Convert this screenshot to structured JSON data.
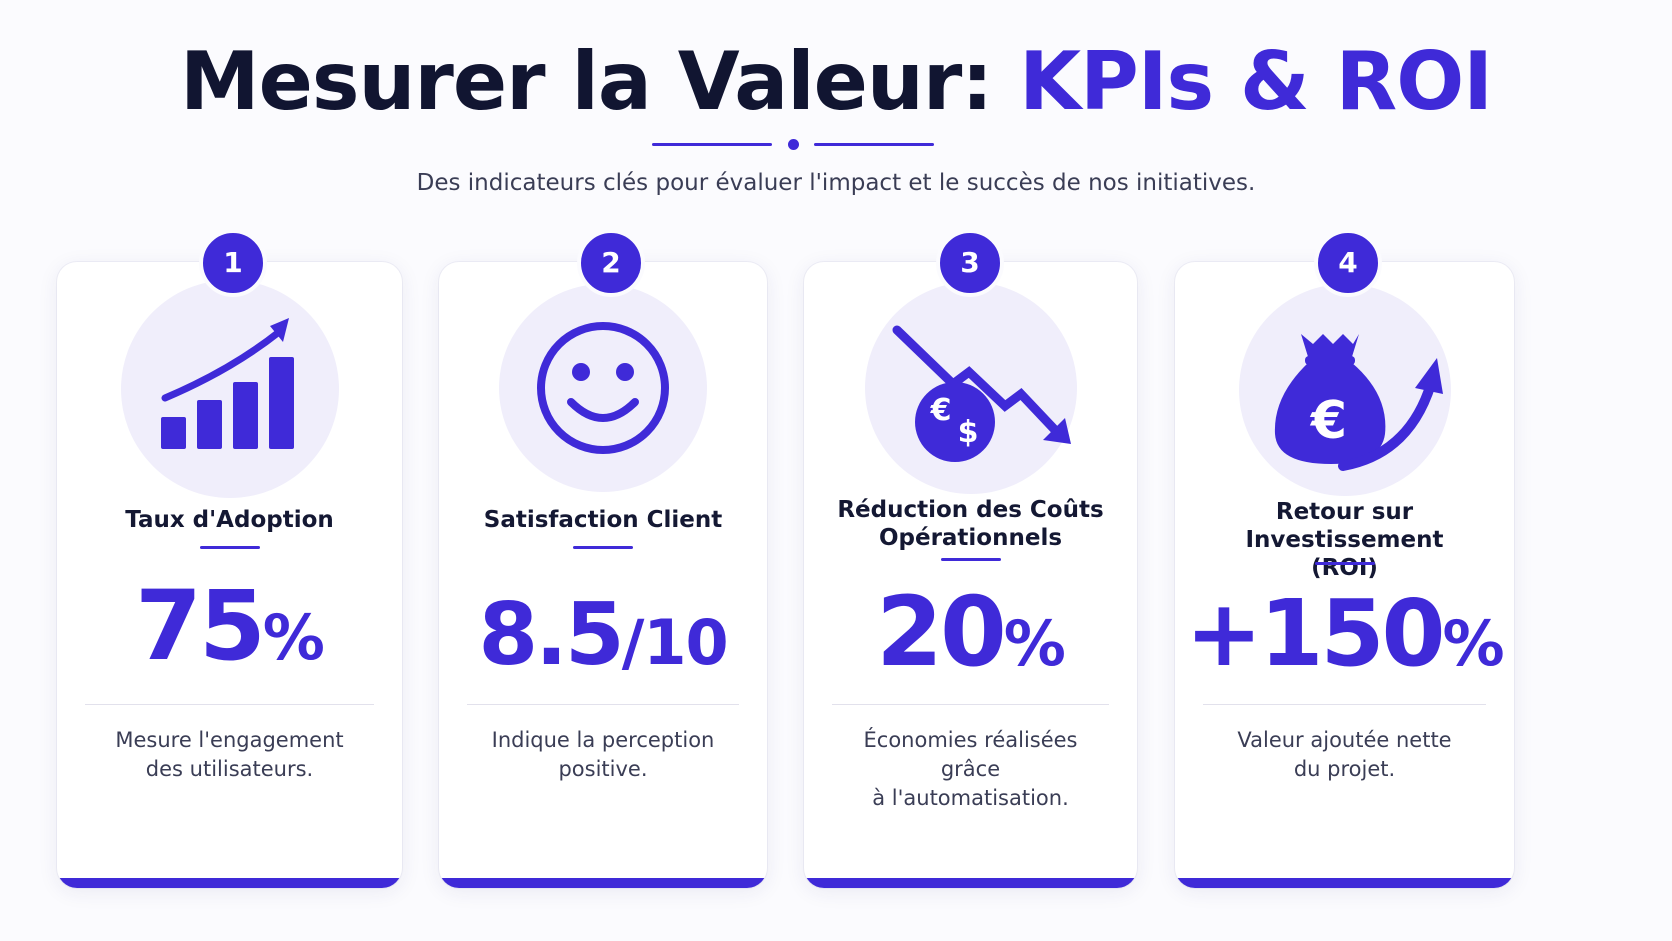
{
  "header": {
    "title_main": "Mesurer la Valeur: ",
    "title_accent": "KPIs & ROI",
    "subtitle": "Des indicateurs clés pour évaluer l'impact et le succès de nos initiatives."
  },
  "colors": {
    "accent": "#3f2ad8",
    "dark": "#111531",
    "icon_bg": "#f0eefb"
  },
  "cards": [
    {
      "number": "1",
      "icon": "growth-chart-icon",
      "title_line1": "Taux d'Adoption",
      "title_line2": "",
      "value": "75",
      "unit": "%",
      "desc_line1": "Mesure l'engagement",
      "desc_line2": "des utilisateurs."
    },
    {
      "number": "2",
      "icon": "smiley-icon",
      "title_line1": "Satisfaction Client",
      "title_line2": "",
      "value": "8.5",
      "unit": "/10",
      "desc_line1": "Indique la perception",
      "desc_line2": "positive."
    },
    {
      "number": "3",
      "icon": "cost-reduction-icon",
      "title_line1": "Réduction des Coûts",
      "title_line2": "Opérationnels",
      "value": "20",
      "unit": "%",
      "desc_line1": "Économies réalisées grâce",
      "desc_line2": "à l'automatisation."
    },
    {
      "number": "4",
      "icon": "money-bag-icon",
      "title_line1": "Retour sur Investissement",
      "title_line2": "(ROI)",
      "value": "+150",
      "unit": "%",
      "desc_line1": "Valeur ajoutée nette",
      "desc_line2": "du projet."
    }
  ]
}
